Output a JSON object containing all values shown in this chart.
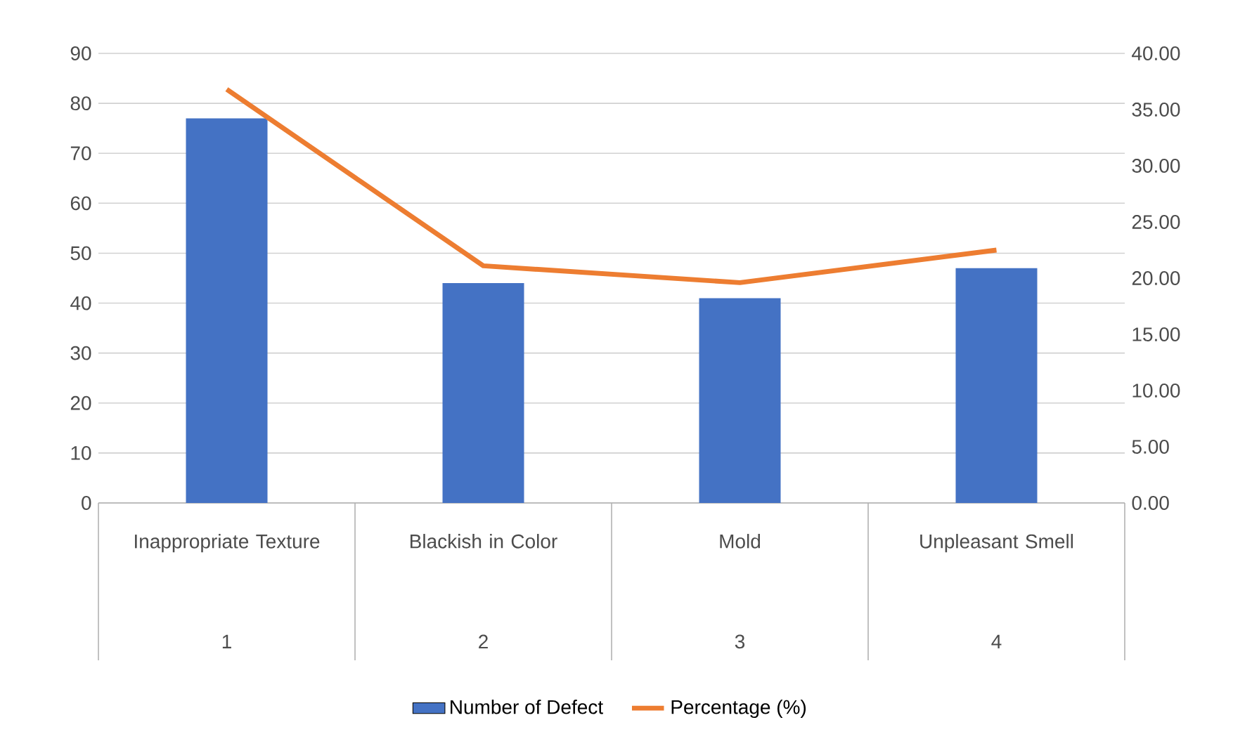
{
  "chart_data": {
    "type": "bar",
    "categories": [
      "Inappropriate Texture",
      "Blackish in Color",
      "Mold",
      "Unpleasant Smell"
    ],
    "annotations": [
      "1",
      "2",
      "3",
      "4"
    ],
    "series": [
      {
        "name": "Number of Defect",
        "color": "#4472c4",
        "values": [
          77,
          44,
          41,
          47
        ]
      },
      {
        "name": "Percentage (%)",
        "type": "line",
        "axis": "y2",
        "color": "#ed7d31",
        "values": [
          36.8,
          21.1,
          19.6,
          22.5
        ]
      }
    ],
    "ylim": [
      0,
      90
    ],
    "yticks": [
      0,
      10,
      20,
      30,
      40,
      50,
      60,
      70,
      80,
      90
    ],
    "y2lim": [
      0,
      40
    ],
    "y2ticks": [
      {
        "value": 0,
        "label": "0.00"
      },
      {
        "value": 5,
        "label": "5.00"
      },
      {
        "value": 10,
        "label": "10.00"
      },
      {
        "value": 15,
        "label": "15.00"
      },
      {
        "value": 20,
        "label": "20.00"
      },
      {
        "value": 25,
        "label": "25.00"
      },
      {
        "value": 30,
        "label": "30.00"
      },
      {
        "value": 35,
        "label": "35.00"
      },
      {
        "value": 40,
        "label": "40.00"
      }
    ],
    "grid": "y",
    "legend": "bottom",
    "marker": "none",
    "line_style": "solid"
  }
}
